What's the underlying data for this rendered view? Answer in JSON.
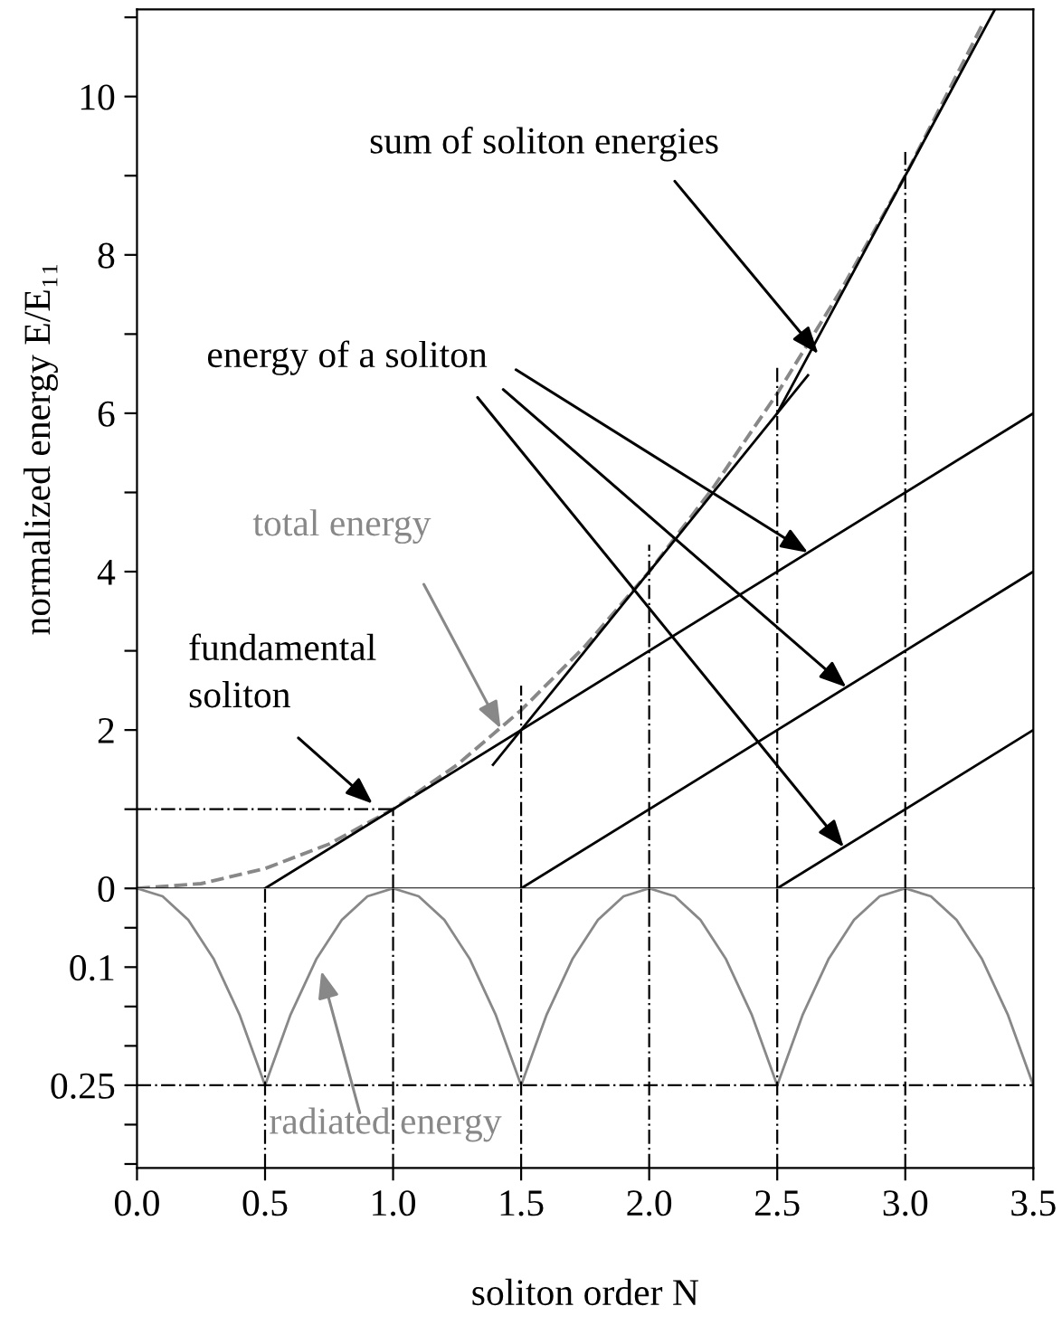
{
  "chart_data": [
    {
      "type": "line",
      "ylabel": "normalized energy E/E₁₁",
      "xlim": [
        0,
        3.5
      ],
      "ylim": [
        0,
        11.1
      ],
      "yticks": [
        0,
        {
          "value": 1,
          "label": null
        },
        2,
        {
          "value": 3,
          "label": null
        },
        4,
        {
          "value": 5,
          "label": null
        },
        6,
        {
          "value": 7,
          "label": null
        },
        8,
        {
          "value": 9,
          "label": null
        },
        10,
        {
          "value": 11,
          "label": null
        }
      ],
      "tick_labels": "y",
      "grid": false,
      "legend": false,
      "series": [
        {
          "x": [
            0,
            0.25,
            0.5,
            0.75,
            1.0,
            1.25,
            1.5,
            1.75,
            2.0,
            2.25,
            2.5,
            2.75,
            3.0,
            3.3
          ],
          "values": [
            0,
            0.06,
            0.25,
            0.56,
            1.0,
            1.56,
            2.25,
            3.06,
            4.0,
            5.06,
            6.25,
            7.56,
            9.0,
            10.9
          ],
          "color": "#888888",
          "line_style": "dashed"
        },
        {
          "x": [
            0.5,
            3.5
          ],
          "values": [
            0,
            6
          ],
          "color": "#000000",
          "line_style": "solid"
        },
        {
          "x": [
            1.5,
            3.5
          ],
          "values": [
            0,
            4
          ],
          "color": "#000000",
          "line_style": "solid"
        },
        {
          "x": [
            2.5,
            3.5
          ],
          "values": [
            0,
            2
          ],
          "color": "#000000",
          "line_style": "solid"
        },
        {
          "x": [
            1.39,
            2.62
          ],
          "values": [
            1.56,
            6.48
          ],
          "color": "#000000",
          "line_style": "solid"
        },
        {
          "x": [
            2.5,
            3.35
          ],
          "values": [
            6,
            11.1
          ],
          "color": "#000000",
          "line_style": "solid"
        },
        {
          "x": [
            0,
            1
          ],
          "values": [
            1,
            1
          ],
          "color": "#000000",
          "line_style": "dashed"
        },
        {
          "x": [
            1,
            1
          ],
          "values": [
            0,
            1
          ],
          "color": "#000000",
          "line_style": "dashed"
        },
        {
          "x": [
            1.5,
            1.5
          ],
          "values": [
            0,
            2.56
          ],
          "color": "#000000",
          "line_style": "dashed"
        },
        {
          "x": [
            2,
            2
          ],
          "values": [
            0,
            4.34
          ],
          "color": "#000000",
          "line_style": "dashed"
        },
        {
          "x": [
            2.5,
            2.5
          ],
          "values": [
            0,
            6.58
          ],
          "color": "#000000",
          "line_style": "dashed"
        },
        {
          "x": [
            3,
            3
          ],
          "values": [
            0,
            9.3
          ],
          "color": "#000000",
          "line_style": "dashed"
        }
      ],
      "annotations": [
        {
          "text": "sum of soliton energies",
          "x": 2.66,
          "y": 6.75
        },
        {
          "text": "energy of a soliton",
          "x": 2.62,
          "y": 4.24
        },
        {
          "text": "total energy",
          "x": 1.42,
          "y": 2.02
        },
        {
          "text": "fundamental\nsoliton",
          "x": 0.92,
          "y": 1.07
        }
      ]
    },
    {
      "type": "line",
      "xlabel": "soliton order N",
      "xlim": [
        0,
        3.5
      ],
      "ylim": [
        0.355,
        0
      ],
      "xticks": [
        {
          "value": 0,
          "label": "0.0"
        },
        {
          "value": 0.5,
          "label": "0.5"
        },
        {
          "value": 1,
          "label": "1.0"
        },
        {
          "value": 1.5,
          "label": "1.5"
        },
        {
          "value": 2,
          "label": "2.0"
        },
        {
          "value": 2.5,
          "label": "2.5"
        },
        {
          "value": 3,
          "label": "3.0"
        },
        {
          "value": 3.5,
          "label": "3.5"
        }
      ],
      "yticks": [
        {
          "value": 0.05,
          "label": null
        },
        0.1,
        {
          "value": 0.15,
          "label": null
        },
        {
          "value": 0.2,
          "label": null
        },
        0.25,
        {
          "value": 0.3,
          "label": null
        },
        {
          "value": 0.35,
          "label": null
        }
      ],
      "grid": false,
      "legend": false,
      "series": [
        {
          "x": [
            0,
            0.1,
            0.2,
            0.3,
            0.4,
            0.5,
            0.6,
            0.7,
            0.8,
            0.9,
            1.0,
            1.1,
            1.2,
            1.3,
            1.4,
            1.5,
            1.6,
            1.7,
            1.8,
            1.9,
            2.0,
            2.1,
            2.2,
            2.3,
            2.4,
            2.5,
            2.6,
            2.7,
            2.8,
            2.9,
            3.0,
            3.1,
            3.2,
            3.3,
            3.4,
            3.5
          ],
          "values": [
            0,
            0.01,
            0.04,
            0.09,
            0.16,
            0.25,
            0.16,
            0.09,
            0.04,
            0.01,
            0,
            0.01,
            0.04,
            0.09,
            0.16,
            0.25,
            0.16,
            0.09,
            0.04,
            0.01,
            0,
            0.01,
            0.04,
            0.09,
            0.16,
            0.25,
            0.16,
            0.09,
            0.04,
            0.01,
            0,
            0.01,
            0.04,
            0.09,
            0.16,
            0.25
          ],
          "color": "#888888",
          "line_style": "solid"
        }
      ],
      "ref_lines": [
        {
          "axis": "y",
          "value": 0.25,
          "color": "#000000",
          "line_style": "dashed"
        },
        {
          "axis": "x",
          "value": 0.5,
          "color": "#000000",
          "line_style": "dashed"
        },
        {
          "axis": "x",
          "value": 1,
          "color": "#000000",
          "line_style": "dashed"
        },
        {
          "axis": "x",
          "value": 1.5,
          "color": "#000000",
          "line_style": "dashed"
        },
        {
          "axis": "x",
          "value": 2,
          "color": "#000000",
          "line_style": "dashed"
        },
        {
          "axis": "x",
          "value": 2.5,
          "color": "#000000",
          "line_style": "dashed"
        },
        {
          "axis": "x",
          "value": 3,
          "color": "#000000",
          "line_style": "dashed"
        }
      ],
      "annotations": [
        {
          "text": "radiated energy",
          "x": 0.72,
          "y": 0.105
        }
      ]
    }
  ]
}
